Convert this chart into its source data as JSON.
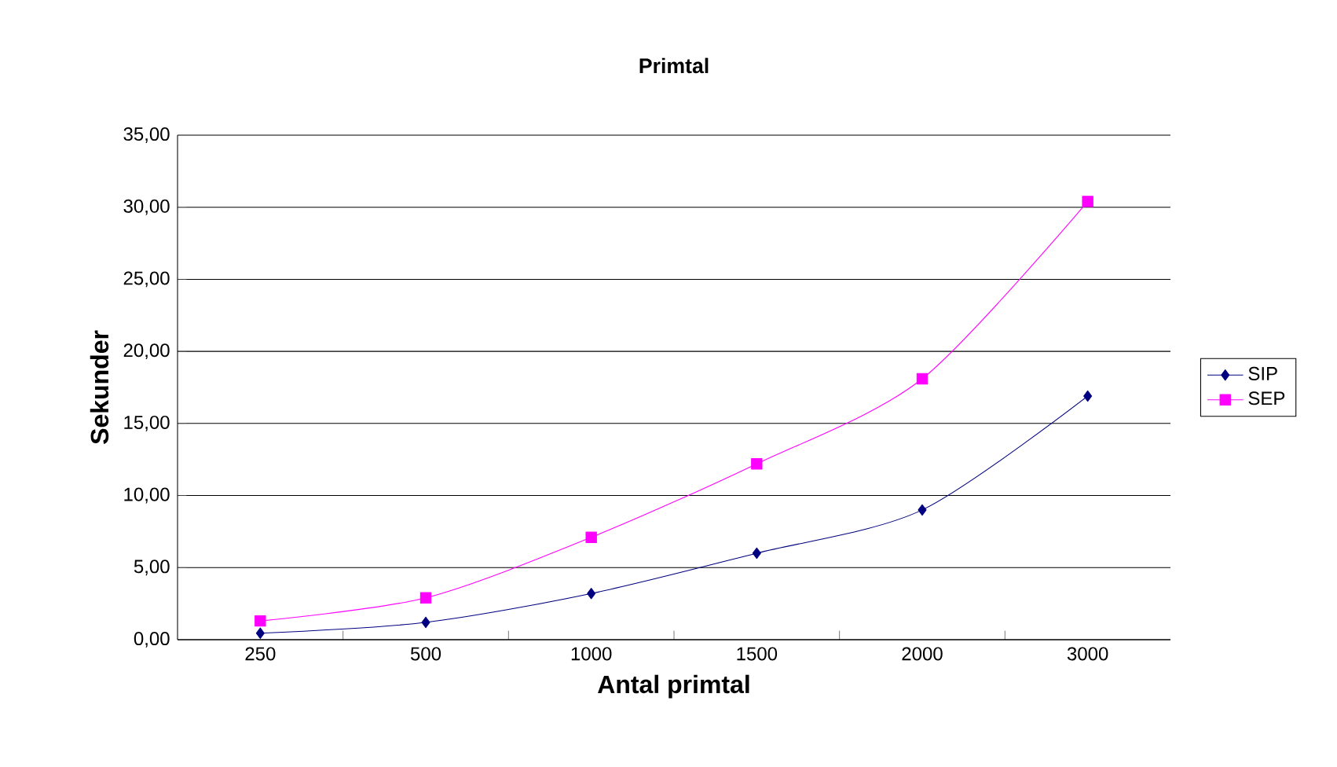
{
  "chart_data": {
    "type": "line",
    "title": "Primtal",
    "xlabel": "Antal primtal",
    "ylabel": "Sekunder",
    "categories": [
      "250",
      "500",
      "1000",
      "1500",
      "2000",
      "3000"
    ],
    "series": [
      {
        "name": "SIP",
        "color": "#000080",
        "marker": "diamond",
        "values": [
          0.45,
          1.2,
          3.2,
          6.0,
          9.0,
          16.9
        ]
      },
      {
        "name": "SEP",
        "color": "#ff00ff",
        "marker": "square",
        "values": [
          1.3,
          2.9,
          7.1,
          12.2,
          18.1,
          30.4
        ]
      }
    ],
    "ylim": [
      0,
      35
    ],
    "yticks": [
      {
        "value": 0,
        "label": "0,00"
      },
      {
        "value": 5,
        "label": "5,00"
      },
      {
        "value": 10,
        "label": "10,00"
      },
      {
        "value": 15,
        "label": "15,00"
      },
      {
        "value": 20,
        "label": "20,00"
      },
      {
        "value": 25,
        "label": "25,00"
      },
      {
        "value": 30,
        "label": "30,00"
      },
      {
        "value": 35,
        "label": "35,00"
      }
    ],
    "grid": "y",
    "legend": "right",
    "line_style": "solid"
  }
}
